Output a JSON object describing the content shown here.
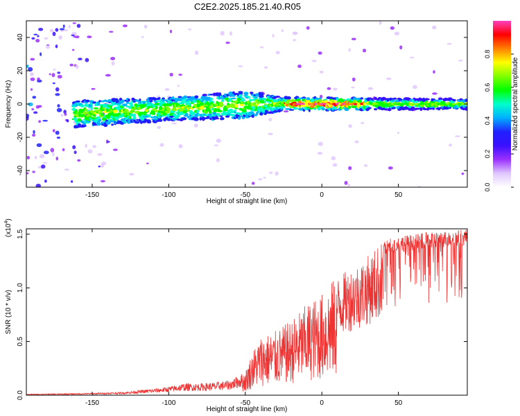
{
  "title": "C2E2.2025.185.21.40.R05",
  "colors": {
    "snr_line": "#ee3333",
    "frame": "#000000",
    "colormap": [
      "#ffffff",
      "#e0c8ff",
      "#9b30ff",
      "#3a10ff",
      "#2020ff",
      "#00b0ff",
      "#00ffcc",
      "#00ff00",
      "#80ff00",
      "#ffff00",
      "#ff8000",
      "#ff0000",
      "#ff40c0"
    ]
  },
  "chart_data": [
    {
      "type": "heatmap",
      "xlabel": "Height of straight line (km)",
      "ylabel": "Frequency (Hz)",
      "xlim": [
        -193,
        95
      ],
      "ylim": [
        -50,
        50
      ],
      "xticks": [
        -150,
        -100,
        -50,
        0,
        50
      ],
      "xtick_labels": [
        "-150",
        "-100",
        "-50",
        "0",
        "50"
      ],
      "yticks": [
        -40,
        -20,
        0,
        20,
        40
      ],
      "ytick_labels": [
        "-40",
        "-20",
        "0",
        "20",
        "40"
      ],
      "colorbar": {
        "label": "Normalized spectral amplitude",
        "range": [
          0.0,
          1.0
        ],
        "ticks": [
          0.0,
          0.2,
          0.4,
          0.6,
          0.8
        ],
        "tick_labels": [
          "0.0",
          "0.2",
          "0.4",
          "0.6",
          "0.8"
        ]
      },
      "band": {
        "description_free": true,
        "centre_hz": [
          [
            -160,
            -6
          ],
          [
            -120,
            -4
          ],
          [
            -80,
            -2
          ],
          [
            -40,
            0
          ],
          [
            -25,
            0
          ],
          [
            0,
            0
          ],
          [
            50,
            0
          ],
          [
            95,
            0
          ]
        ],
        "halfwidth_hz": [
          [
            -160,
            8
          ],
          [
            -100,
            7
          ],
          [
            -50,
            8
          ],
          [
            -25,
            4
          ],
          [
            95,
            3
          ]
        ]
      },
      "grid": false
    },
    {
      "type": "line",
      "xlabel": "Height of straight line (km)",
      "ylabel": "SNR (10 * v/v)",
      "y_multiplier": "(x10",
      "y_multiplier_exp": "4",
      "y_multiplier_close": ")",
      "xlim": [
        -193,
        95
      ],
      "ylim": [
        0.0,
        1.55
      ],
      "xticks": [
        -150,
        -100,
        -50,
        0,
        50
      ],
      "xtick_labels": [
        "-150",
        "-100",
        "-50",
        "0",
        "50"
      ],
      "yticks": [
        0.0,
        0.5,
        1.0,
        1.5
      ],
      "ytick_labels": [
        "0.0",
        "0.5",
        "1.0",
        "1.5"
      ],
      "series": [
        {
          "envelope_x": [
            -193,
            -170,
            -150,
            -130,
            -110,
            -100,
            -90,
            -80,
            -70,
            -60,
            -50,
            -45,
            -40,
            -30,
            -20,
            -10,
            0,
            5,
            10,
            20,
            30,
            40,
            50,
            60,
            70,
            80,
            95
          ],
          "envelope_y": [
            0.01,
            0.015,
            0.02,
            0.03,
            0.06,
            0.08,
            0.11,
            0.11,
            0.12,
            0.14,
            0.22,
            0.42,
            0.55,
            0.6,
            0.7,
            0.85,
            0.95,
            1.05,
            1.1,
            1.2,
            1.3,
            1.45,
            1.48,
            1.5,
            1.52,
            1.53,
            1.55
          ]
        }
      ],
      "grid": false
    }
  ]
}
